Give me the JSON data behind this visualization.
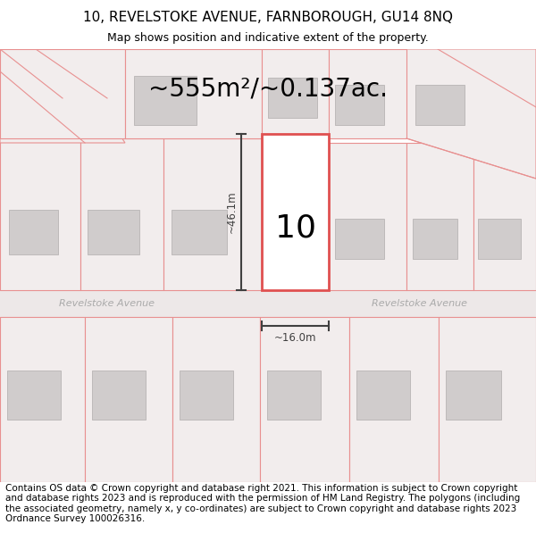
{
  "title_line1": "10, REVELSTOKE AVENUE, FARNBOROUGH, GU14 8NQ",
  "title_line2": "Map shows position and indicative extent of the property.",
  "area_text": "~555m²/~0.137ac.",
  "dim_height": "~46.1m",
  "dim_width": "~16.0m",
  "property_number": "10",
  "street_name_left": "Revelstoke Avenue",
  "street_name_right": "Revelstoke Avenue",
  "footer_text": "Contains OS data © Crown copyright and database right 2021. This information is subject to Crown copyright and database rights 2023 and is reproduced with the permission of HM Land Registry. The polygons (including the associated geometry, namely x, y co-ordinates) are subject to Crown copyright and database rights 2023 Ordnance Survey 100026316.",
  "map_bg": "#f7f2f2",
  "road_fill": "#ede8e8",
  "plot_outline_color": "#e05050",
  "neighbor_outline_color": "#e89090",
  "building_fill": "#d0cccc",
  "building_outline": "#b8b4b4",
  "road_label_color": "#aaaaaa",
  "dim_line_color": "#404040",
  "area_font_size": 20,
  "property_font_size": 26,
  "title_font_size": 11,
  "subtitle_font_size": 9,
  "footer_font_size": 7.5
}
